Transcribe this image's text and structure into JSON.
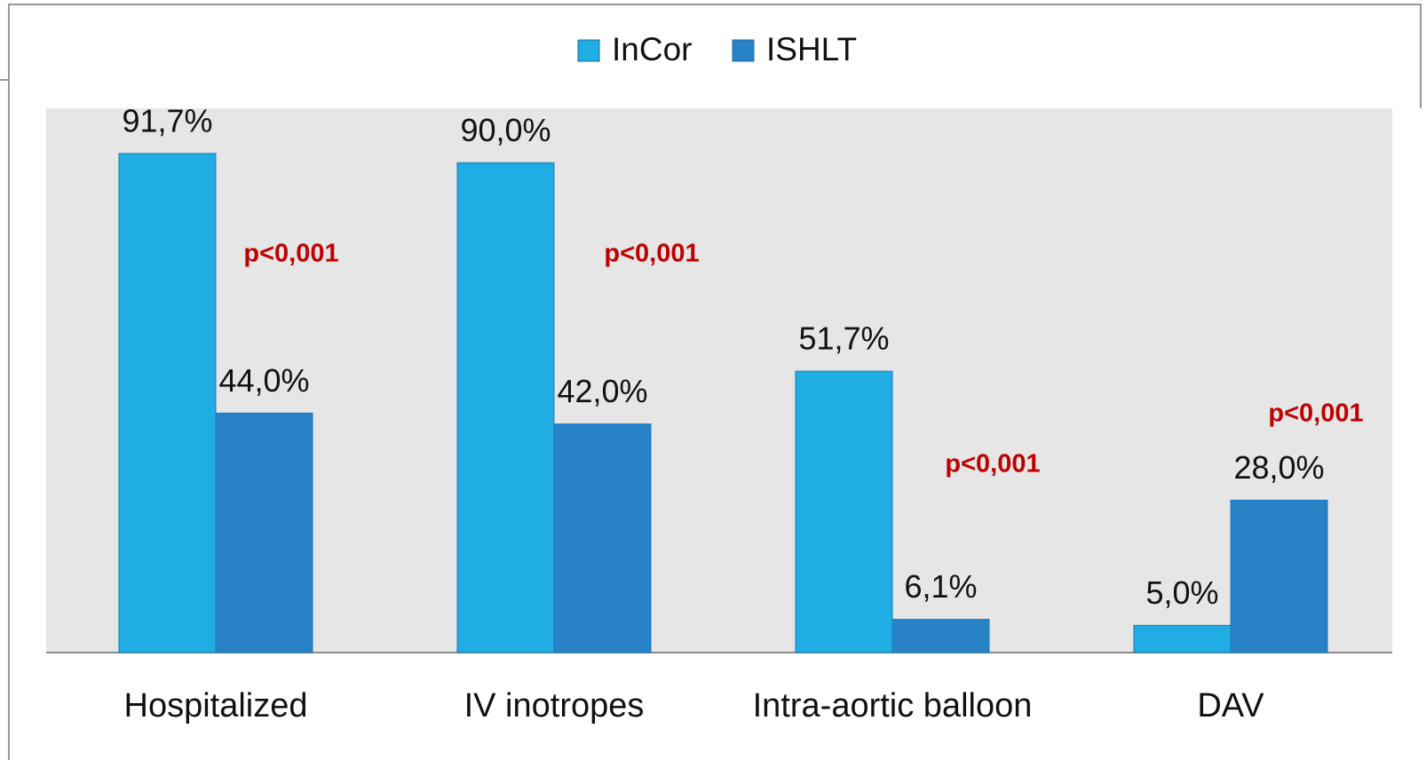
{
  "chart_data": {
    "type": "bar",
    "categories": [
      "Hospitalized",
      "IV inotropes",
      "Intra-aortic balloon",
      "DAV"
    ],
    "series": [
      {
        "name": "InCor",
        "color": "#1fade3",
        "values": [
          91.7,
          90.0,
          51.7,
          5.0
        ],
        "value_labels": [
          "91,7%",
          "90,0%",
          "51,7%",
          "5,0%"
        ]
      },
      {
        "name": "ISHLT",
        "color": "#2882c8",
        "values": [
          44.0,
          42.0,
          6.1,
          28.0
        ],
        "value_labels": [
          "44,0%",
          "42,0%",
          "6,1%",
          "28,0%"
        ]
      }
    ],
    "annotations": [
      "p<0,001",
      "p<0,001",
      "p<0,001",
      "p<0,001"
    ],
    "ylim": [
      0,
      100
    ],
    "legend": "top",
    "grid": false
  }
}
